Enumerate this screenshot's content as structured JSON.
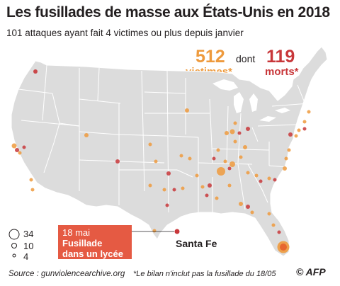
{
  "title": "Les fusillades de masse aux États-Unis en 2018",
  "subtitle": "101 attaques ayant fait 4 victimes ou plus depuis janvier",
  "stats": {
    "victims_value": "512",
    "victims_label": "victimes*",
    "connector": "dont",
    "deaths_value": "119",
    "deaths_label": "morts*"
  },
  "callout": {
    "date": "18 mai",
    "text_line1": "Fusillade",
    "text_line2": "dans un lycée"
  },
  "city_label": "Santa Fe",
  "legend": {
    "title": "",
    "items": [
      {
        "value": "34",
        "label": "34"
      },
      {
        "value": "10",
        "label": "10"
      },
      {
        "value": "4",
        "label": "4"
      }
    ]
  },
  "source": "Source : gunviolencearchive.org",
  "note": "*Le bilan n'inclut pas la fusillade du 18/05",
  "logo": "© AFP",
  "colors": {
    "victims": "#ee9a3d",
    "deaths": "#c8373a",
    "land": "#dcdcdc",
    "border": "#ffffff",
    "callout_bg": "#e55a43"
  }
}
